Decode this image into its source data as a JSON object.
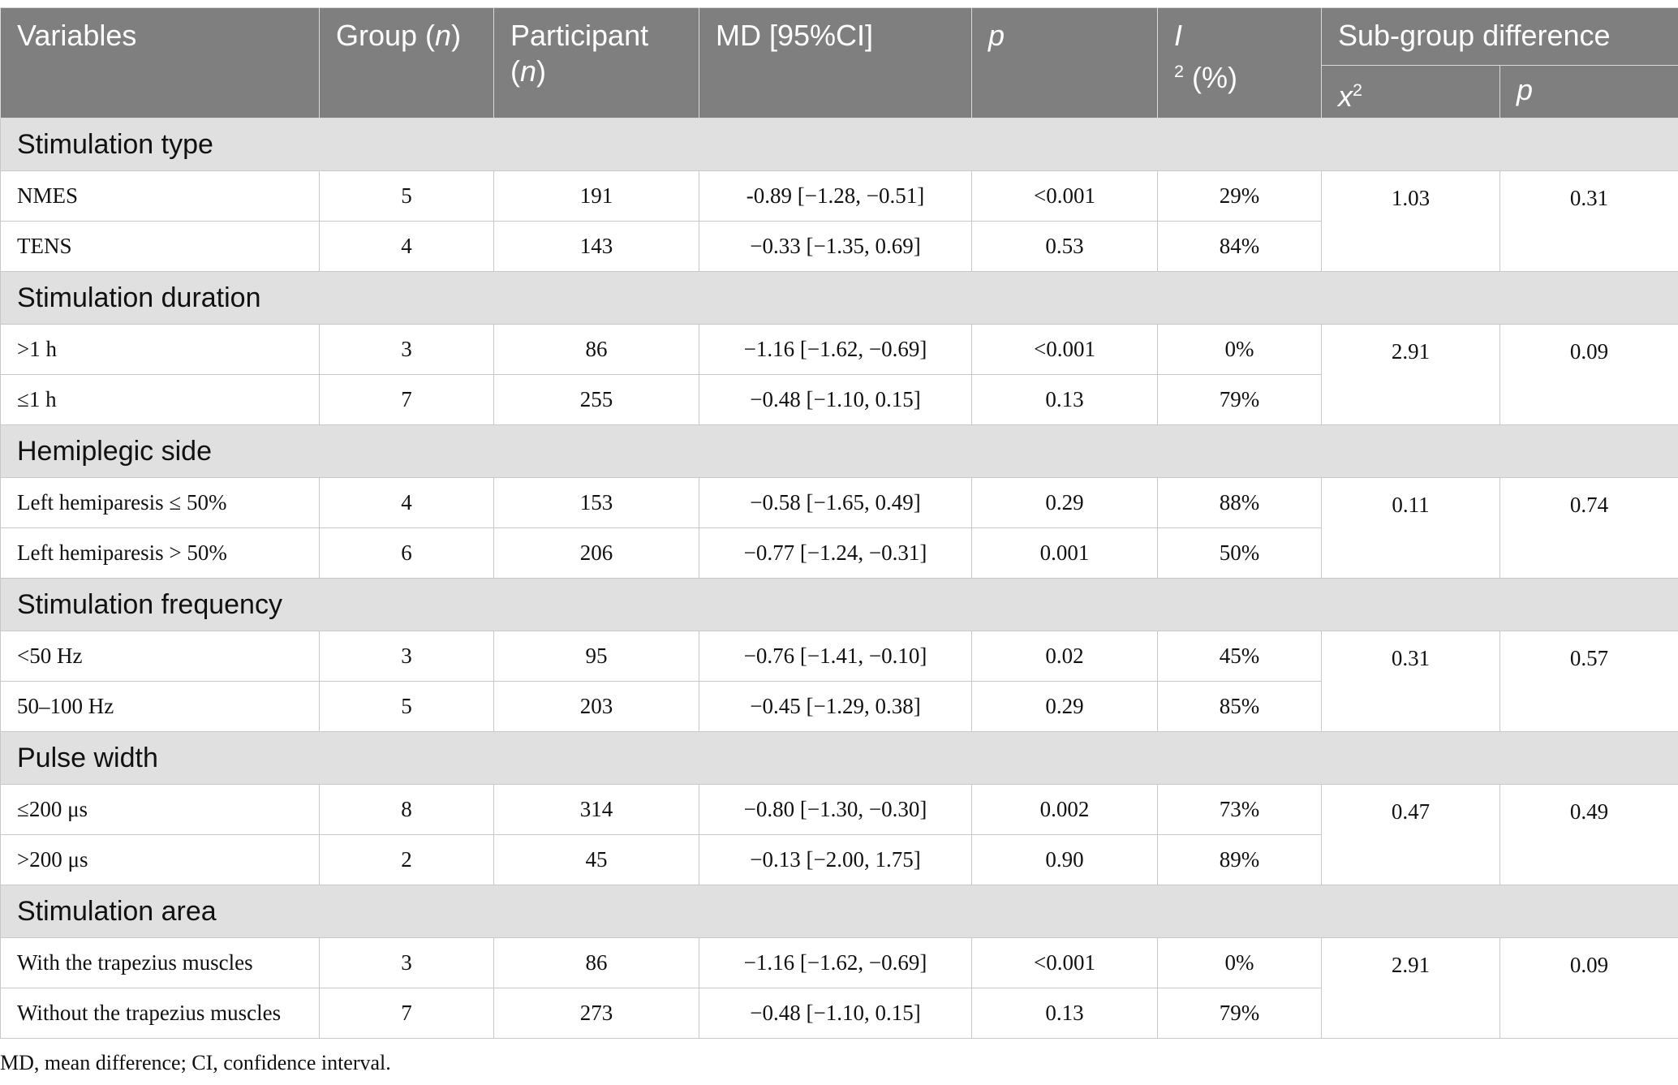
{
  "header": {
    "variables": "Variables",
    "group_prefix": "Group (",
    "group_n": "n",
    "group_suffix": ")",
    "participant": "Participant",
    "participant_n_open": "(",
    "participant_n": "n",
    "participant_n_close": ")",
    "md": "MD [95%CI]",
    "p": "p",
    "i2_letter": "I",
    "i2_sup": "2",
    "i2_unit": "(%)",
    "subgroup": "Sub-group difference",
    "x2_letter": "x",
    "x2_sup": "2",
    "subgroup_p": "p"
  },
  "groups": [
    {
      "title": "Stimulation type",
      "rows": [
        {
          "label": "NMES",
          "group_n": "5",
          "participant_n": "191",
          "md": "-0.89 [−1.28, −0.51]",
          "p": "<0.001",
          "i2": "29%"
        },
        {
          "label": "TENS",
          "group_n": "4",
          "participant_n": "143",
          "md": "−0.33 [−1.35, 0.69]",
          "p": "0.53",
          "i2": "84%"
        }
      ],
      "x2": "1.03",
      "sub_p": "0.31"
    },
    {
      "title": "Stimulation duration",
      "rows": [
        {
          "label": ">1 h",
          "group_n": "3",
          "participant_n": "86",
          "md": "−1.16 [−1.62, −0.69]",
          "p": "<0.001",
          "i2": "0%"
        },
        {
          "label": "≤1 h",
          "group_n": "7",
          "participant_n": "255",
          "md": "−0.48 [−1.10, 0.15]",
          "p": "0.13",
          "i2": "79%"
        }
      ],
      "x2": "2.91",
      "sub_p": "0.09"
    },
    {
      "title": "Hemiplegic side",
      "rows": [
        {
          "label": "Left hemiparesis ≤ 50%",
          "group_n": "4",
          "participant_n": "153",
          "md": "−0.58 [−1.65, 0.49]",
          "p": "0.29",
          "i2": "88%"
        },
        {
          "label": "Left hemiparesis > 50%",
          "group_n": "6",
          "participant_n": "206",
          "md": "−0.77 [−1.24, −0.31]",
          "p": "0.001",
          "i2": "50%"
        }
      ],
      "x2": "0.11",
      "sub_p": "0.74"
    },
    {
      "title": "Stimulation frequency",
      "rows": [
        {
          "label": "<50 Hz",
          "group_n": "3",
          "participant_n": "95",
          "md": "−0.76 [−1.41, −0.10]",
          "p": "0.02",
          "i2": "45%"
        },
        {
          "label": "50–100 Hz",
          "group_n": "5",
          "participant_n": "203",
          "md": "−0.45 [−1.29, 0.38]",
          "p": "0.29",
          "i2": "85%"
        }
      ],
      "x2": "0.31",
      "sub_p": "0.57"
    },
    {
      "title": "Pulse width",
      "rows": [
        {
          "label": "≤200 μs",
          "group_n": "8",
          "participant_n": "314",
          "md": "−0.80 [−1.30, −0.30]",
          "p": "0.002",
          "i2": "73%"
        },
        {
          "label": ">200 μs",
          "group_n": "2",
          "participant_n": "45",
          "md": "−0.13 [−2.00, 1.75]",
          "p": "0.90",
          "i2": "89%"
        }
      ],
      "x2": "0.47",
      "sub_p": "0.49"
    },
    {
      "title": "Stimulation area",
      "rows": [
        {
          "label": "With the trapezius muscles",
          "group_n": "3",
          "participant_n": "86",
          "md": "−1.16 [−1.62, −0.69]",
          "p": "<0.001",
          "i2": "0%"
        },
        {
          "label": "Without the trapezius muscles",
          "group_n": "7",
          "participant_n": "273",
          "md": "−0.48 [−1.10, 0.15]",
          "p": "0.13",
          "i2": "79%"
        }
      ],
      "x2": "2.91",
      "sub_p": "0.09"
    }
  ],
  "footnote": "MD, mean difference; CI, confidence interval."
}
